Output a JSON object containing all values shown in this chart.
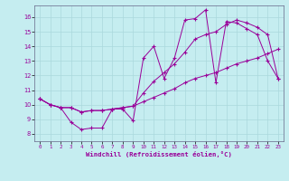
{
  "title": "",
  "xlabel": "Windchill (Refroidissement éolien,°C)",
  "ylabel": "",
  "bg_color": "#c5edf0",
  "line_color": "#990099",
  "grid_color": "#aad8dc",
  "axis_color": "#666688",
  "xlim": [
    -0.5,
    23.5
  ],
  "ylim": [
    7.5,
    16.8
  ],
  "xticks": [
    0,
    1,
    2,
    3,
    4,
    5,
    6,
    7,
    8,
    9,
    10,
    11,
    12,
    13,
    14,
    15,
    16,
    17,
    18,
    19,
    20,
    21,
    22,
    23
  ],
  "yticks": [
    8,
    9,
    10,
    11,
    12,
    13,
    14,
    15,
    16
  ],
  "series1_x": [
    0,
    1,
    2,
    3,
    4,
    5,
    6,
    7,
    8,
    9,
    10,
    11,
    12,
    13,
    14,
    15,
    16,
    17,
    18,
    19,
    20,
    21,
    22,
    23
  ],
  "series1_y": [
    10.4,
    10.0,
    9.8,
    8.8,
    8.3,
    8.4,
    8.4,
    9.7,
    9.7,
    8.9,
    13.2,
    14.0,
    11.8,
    13.2,
    15.8,
    15.9,
    16.5,
    11.5,
    15.7,
    15.6,
    15.2,
    14.8,
    13.0,
    11.8
  ],
  "series2_x": [
    0,
    1,
    2,
    3,
    4,
    5,
    6,
    7,
    8,
    9,
    10,
    11,
    12,
    13,
    14,
    15,
    16,
    17,
    18,
    19,
    20,
    21,
    22,
    23
  ],
  "series2_y": [
    10.4,
    10.0,
    9.8,
    9.8,
    9.5,
    9.6,
    9.6,
    9.7,
    9.8,
    9.9,
    10.2,
    10.5,
    10.8,
    11.1,
    11.5,
    11.8,
    12.0,
    12.2,
    12.5,
    12.8,
    13.0,
    13.2,
    13.5,
    13.8
  ],
  "series3_x": [
    0,
    1,
    2,
    3,
    4,
    5,
    6,
    7,
    8,
    9,
    10,
    11,
    12,
    13,
    14,
    15,
    16,
    17,
    18,
    19,
    20,
    21,
    22,
    23
  ],
  "series3_y": [
    10.4,
    10.0,
    9.8,
    9.8,
    9.5,
    9.6,
    9.6,
    9.7,
    9.8,
    9.9,
    10.8,
    11.6,
    12.2,
    12.8,
    13.6,
    14.5,
    14.8,
    15.0,
    15.5,
    15.8,
    15.6,
    15.3,
    14.8,
    11.8
  ]
}
